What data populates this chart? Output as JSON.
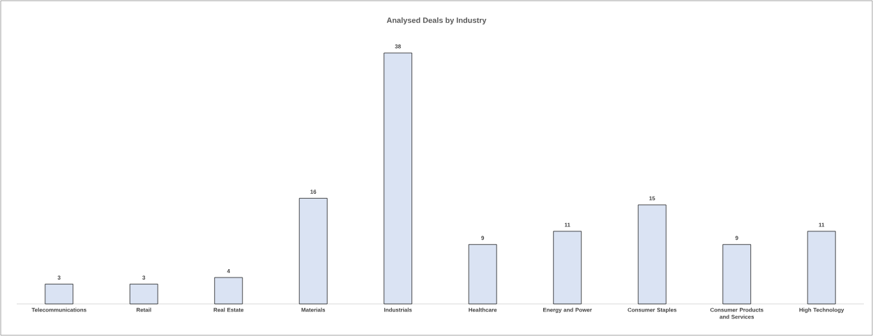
{
  "chart_data": {
    "type": "bar",
    "title": "Analysed Deals by Industry",
    "categories": [
      "Telecommunications",
      "Retail",
      "Real Estate",
      "Materials",
      "Industrials",
      "Healthcare",
      "Energy and Power",
      "Consumer Staples",
      "Consumer Products and Services",
      "High Technology"
    ],
    "values": [
      3,
      3,
      4,
      16,
      38,
      9,
      11,
      15,
      9,
      11
    ],
    "color": "#dae3f3",
    "data_labels": true,
    "tick_labels": "x"
  }
}
